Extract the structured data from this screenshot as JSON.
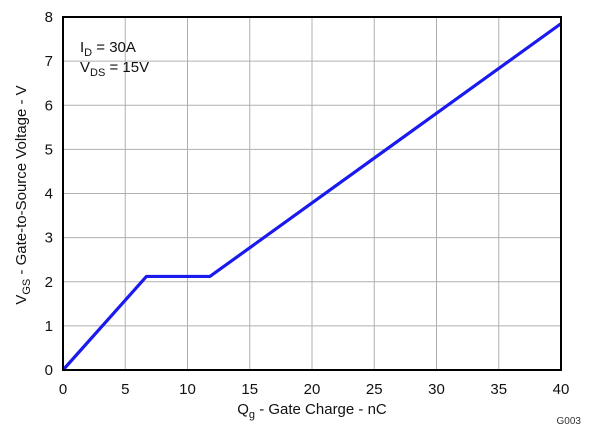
{
  "chart_data": {
    "type": "line",
    "xlabel": {
      "main": "Q",
      "sub": "g",
      "rest": " - Gate Charge - nC"
    },
    "ylabel": {
      "main": "V",
      "sub": "GS",
      "rest": " - Gate-to-Source Voltage - V"
    },
    "xlim": [
      0,
      40
    ],
    "ylim": [
      0,
      8
    ],
    "xticks": [
      0,
      5,
      10,
      15,
      20,
      25,
      30,
      35,
      40
    ],
    "yticks": [
      0,
      1,
      2,
      3,
      4,
      5,
      6,
      7,
      8
    ],
    "grid": true,
    "series": [
      {
        "color": "#1a1aee",
        "x": [
          0,
          6.7,
          11.8,
          40
        ],
        "y": [
          0,
          2.12,
          2.12,
          7.85
        ]
      }
    ],
    "annotations": [
      {
        "main": "I",
        "sub": "D",
        "rest": " = 30A"
      },
      {
        "main": "V",
        "sub": "DS",
        "rest": " = 15V"
      }
    ],
    "figure_id": "G003"
  }
}
